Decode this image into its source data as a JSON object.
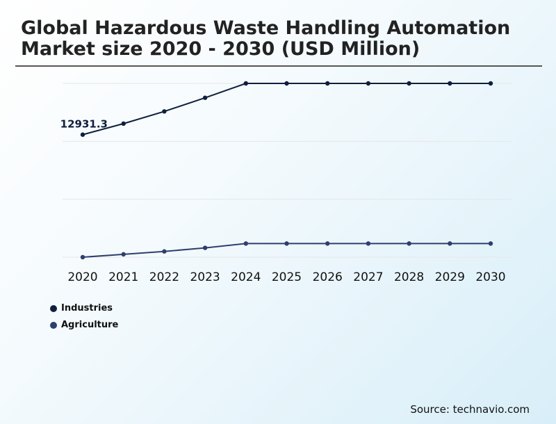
{
  "chart_data": {
    "type": "line",
    "title": "Global Hazardous Waste Handling Automation Market size 2020 - 2030 (USD Million)",
    "categories": [
      "2020",
      "2021",
      "2022",
      "2023",
      "2024",
      "2025",
      "2026",
      "2027",
      "2028",
      "2029",
      "2030"
    ],
    "series": [
      {
        "name": "Industries",
        "color": "#0f1f3d",
        "values": [
          12931.3,
          13700,
          14550,
          15500,
          16500,
          16500,
          16500,
          16500,
          16500,
          16500,
          16500
        ],
        "labels": {
          "0": "12931.3"
        }
      },
      {
        "name": "Agriculture",
        "color": "#2e3f6e",
        "values": [
          4400,
          4600,
          4800,
          5050,
          5350,
          5350,
          5350,
          5350,
          5350,
          5350,
          5350
        ]
      }
    ],
    "ylim": [
      4400,
      16500
    ],
    "grid": true,
    "legend_position": "bottom-left"
  },
  "source": "Source: technavio.com"
}
